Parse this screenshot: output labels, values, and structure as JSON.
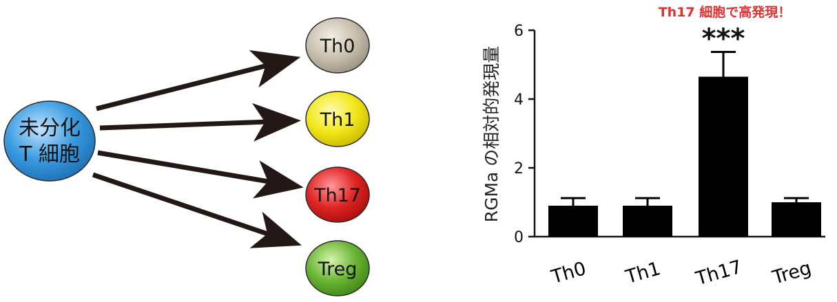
{
  "diagram": {
    "source": {
      "line1": "未分化",
      "line2": "T 細胞",
      "color": "#3a9be0"
    },
    "targets": [
      {
        "label": "Th0",
        "color": "#c9c0ae"
      },
      {
        "label": "Th1",
        "color": "#f2e81a"
      },
      {
        "label": "Th17",
        "color": "#e02424"
      },
      {
        "label": "Treg",
        "color": "#6ab534"
      }
    ]
  },
  "chart_data": {
    "type": "bar",
    "categories": [
      "Th0",
      "Th1",
      "Th17",
      "Treg"
    ],
    "values": [
      0.9,
      0.9,
      4.65,
      1.0
    ],
    "errors": [
      0.22,
      0.22,
      0.72,
      0.12
    ],
    "ylabel": "RGMa の相対的発現量",
    "xlabel": "",
    "ylim": [
      0,
      6
    ],
    "yticks": [
      "0",
      "2",
      "4",
      "6"
    ],
    "annotation": "Th17 細胞で高発現！",
    "significance": "***",
    "bar_color": "#000000",
    "grid": false,
    "legend": "none"
  }
}
